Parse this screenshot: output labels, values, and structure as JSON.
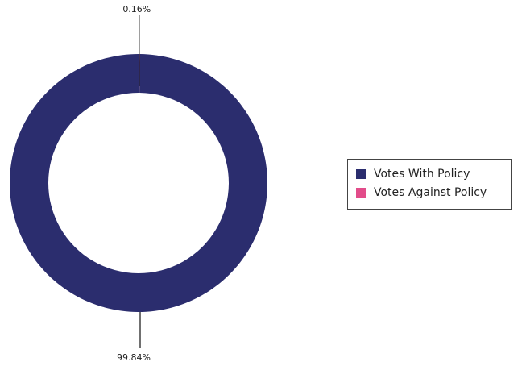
{
  "chart_data": {
    "type": "pie",
    "variant": "donut",
    "categories": [
      "Votes With Policy",
      "Votes Against Policy"
    ],
    "values": [
      99.84,
      0.16
    ],
    "labels": [
      "99.84%",
      "0.16%"
    ],
    "colors": [
      "#2B2D6E",
      "#E24C8A"
    ],
    "start_angle_deg": 0,
    "legend_placement": "right",
    "title": ""
  }
}
